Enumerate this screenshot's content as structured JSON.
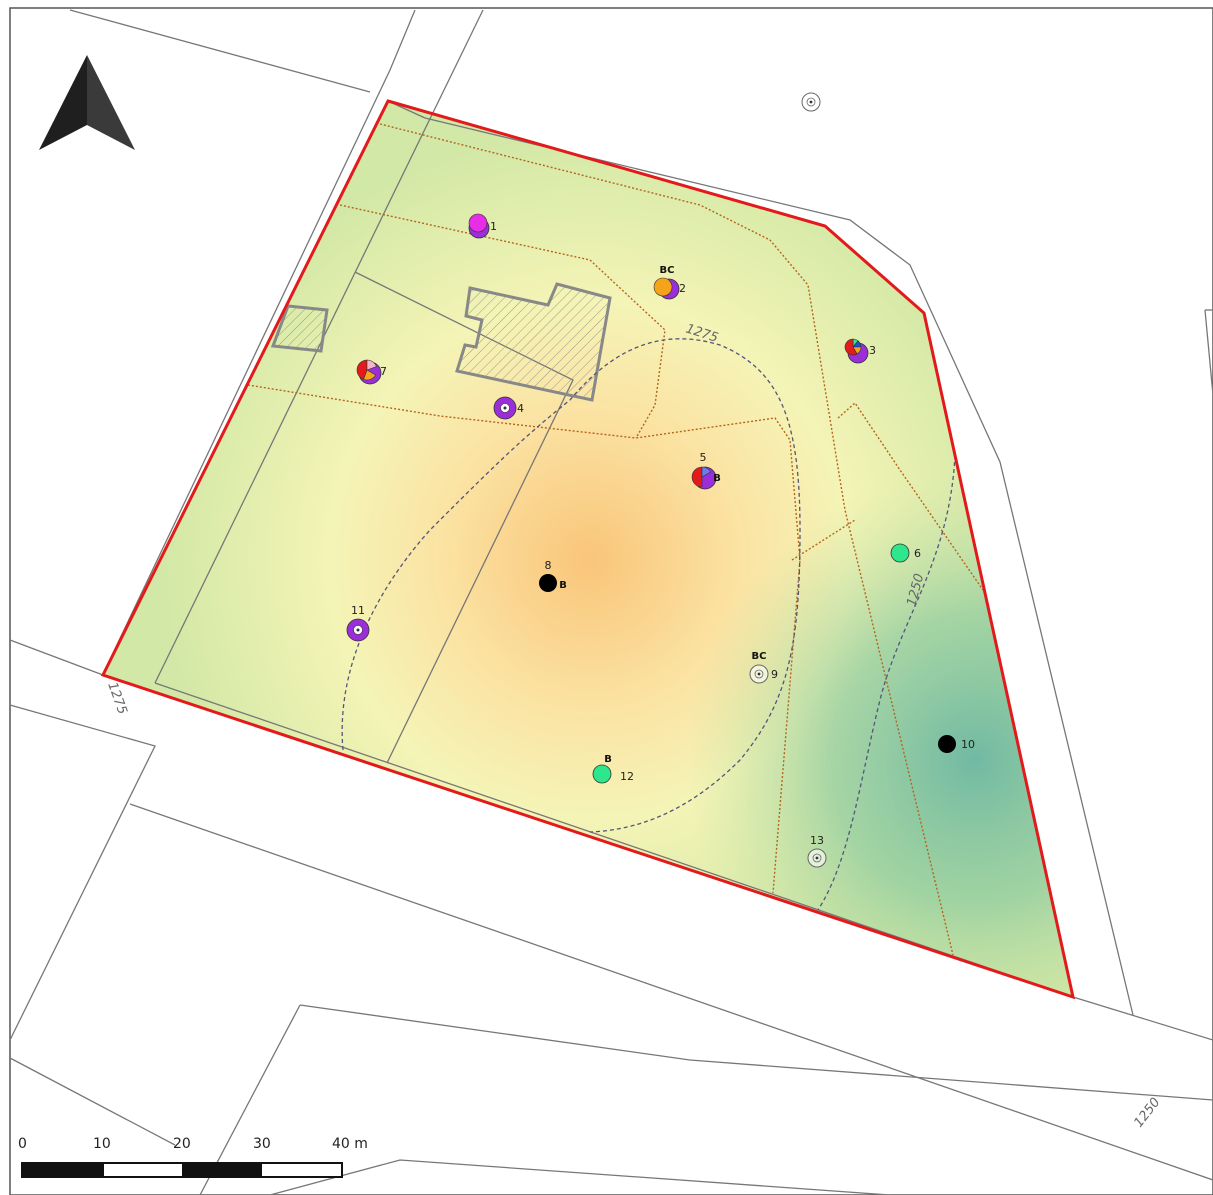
{
  "colors": {
    "boundary": "#e31a1c",
    "parcel_lines": "#777777",
    "path_lines": "#b5651d",
    "contours": "#555577",
    "north_arrow": "#2b2b2b",
    "purple": "#9b2ed8",
    "magenta": "#e62ee6",
    "orange": "#f5a31a",
    "red": "#e31a1c",
    "green": "#2ee68c",
    "black": "#000000",
    "white": "#ffffff"
  },
  "contours": {
    "upper_label": "1275",
    "west_label": "1275",
    "east_label": "1250",
    "southeast_label": "1250"
  },
  "points": [
    {
      "id": "1",
      "label": "1",
      "symbol": "magenta-purple"
    },
    {
      "id": "2",
      "label": "2",
      "tag": "BC",
      "symbol": "orange-purple"
    },
    {
      "id": "3",
      "label": "3",
      "symbol": "multi-pie"
    },
    {
      "id": "4",
      "label": "4",
      "symbol": "purple-ring"
    },
    {
      "id": "5",
      "label": "5",
      "tag": "B",
      "symbol": "red-purple"
    },
    {
      "id": "6",
      "label": "6",
      "symbol": "green"
    },
    {
      "id": "7",
      "label": "7",
      "symbol": "red-purple-pie"
    },
    {
      "id": "8",
      "label": "8",
      "tag": "B",
      "symbol": "black"
    },
    {
      "id": "9",
      "label": "9",
      "tag": "BC",
      "symbol": "empty-ring"
    },
    {
      "id": "10",
      "label": "10",
      "symbol": "black"
    },
    {
      "id": "11",
      "label": "11",
      "symbol": "purple-ring"
    },
    {
      "id": "12",
      "label": "12",
      "tag": "B",
      "symbol": "green"
    },
    {
      "id": "13",
      "label": "13",
      "symbol": "empty-ring"
    },
    {
      "id": "outside",
      "label": "",
      "symbol": "empty-ring"
    }
  ],
  "scale_bar": {
    "ticks": [
      "0",
      "10",
      "20",
      "30",
      "40 m"
    ]
  },
  "north_arrow": {
    "icon": "north-arrow-icon"
  }
}
